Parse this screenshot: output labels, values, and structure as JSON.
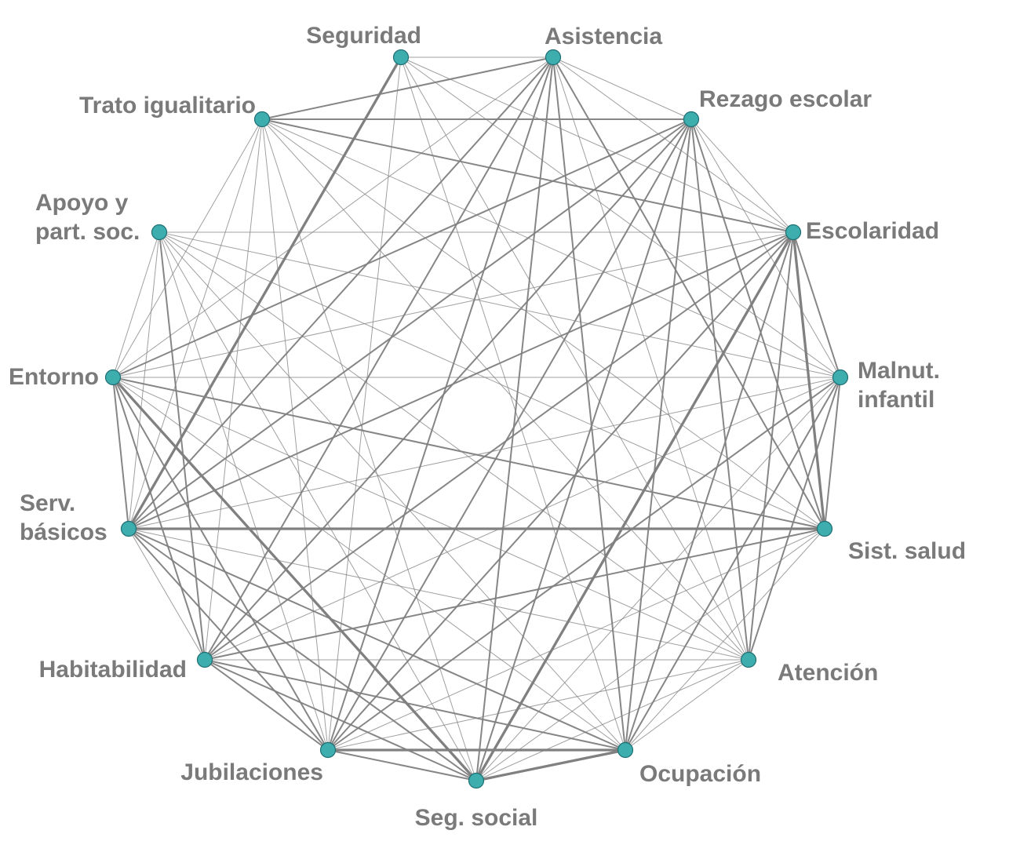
{
  "network": {
    "node_color": "#3dadae",
    "edge_color": "#808080",
    "label_color": "#7a7a7a",
    "nodes": [
      {
        "id": "seguridad",
        "lines": [
          "Seguridad"
        ]
      },
      {
        "id": "asistencia",
        "lines": [
          "Asistencia"
        ]
      },
      {
        "id": "rezago",
        "lines": [
          "Rezago escolar"
        ]
      },
      {
        "id": "escolaridad",
        "lines": [
          "Escolaridad"
        ]
      },
      {
        "id": "malnut",
        "lines": [
          "Malnut.",
          "infantil"
        ]
      },
      {
        "id": "salud",
        "lines": [
          "Sist. salud"
        ]
      },
      {
        "id": "atencion",
        "lines": [
          "Atención"
        ]
      },
      {
        "id": "ocupacion",
        "lines": [
          "Ocupación"
        ]
      },
      {
        "id": "segsocial",
        "lines": [
          "Seg. social"
        ]
      },
      {
        "id": "jubilaciones",
        "lines": [
          "Jubilaciones"
        ]
      },
      {
        "id": "habitabilidad",
        "lines": [
          "Habitabilidad"
        ]
      },
      {
        "id": "servicios",
        "lines": [
          "Serv.",
          "básicos"
        ]
      },
      {
        "id": "entorno",
        "lines": [
          "Entorno"
        ]
      },
      {
        "id": "apoyo",
        "lines": [
          "Apoyo y",
          "part. soc."
        ]
      },
      {
        "id": "trato",
        "lines": [
          "Trato igualitario"
        ]
      }
    ],
    "edges": [
      [
        "seguridad",
        "servicios",
        3
      ],
      [
        "seguridad",
        "asistencia",
        1
      ],
      [
        "seguridad",
        "escolaridad",
        1
      ],
      [
        "seguridad",
        "malnut",
        1
      ],
      [
        "seguridad",
        "atencion",
        1
      ],
      [
        "seguridad",
        "ocupacion",
        1
      ],
      [
        "seguridad",
        "jubilaciones",
        1
      ],
      [
        "asistencia",
        "trato",
        2
      ],
      [
        "asistencia",
        "salud",
        2
      ],
      [
        "asistencia",
        "segsocial",
        2
      ],
      [
        "asistencia",
        "jubilaciones",
        2
      ],
      [
        "asistencia",
        "habitabilidad",
        2
      ],
      [
        "asistencia",
        "servicios",
        2
      ],
      [
        "asistencia",
        "ocupacion",
        2
      ],
      [
        "asistencia",
        "atencion",
        1
      ],
      [
        "asistencia",
        "rezago",
        1
      ],
      [
        "asistencia",
        "escolaridad",
        1
      ],
      [
        "asistencia",
        "entorno",
        1
      ],
      [
        "rezago",
        "trato",
        2
      ],
      [
        "rezago",
        "entorno",
        2
      ],
      [
        "rezago",
        "servicios",
        2
      ],
      [
        "rezago",
        "escolaridad",
        1
      ],
      [
        "rezago",
        "malnut",
        1
      ],
      [
        "rezago",
        "salud",
        2
      ],
      [
        "rezago",
        "atencion",
        2
      ],
      [
        "rezago",
        "ocupacion",
        2
      ],
      [
        "rezago",
        "segsocial",
        2
      ],
      [
        "rezago",
        "jubilaciones",
        2
      ],
      [
        "rezago",
        "habitabilidad",
        2
      ],
      [
        "trato",
        "escolaridad",
        2
      ],
      [
        "trato",
        "salud",
        1
      ],
      [
        "trato",
        "malnut",
        1
      ],
      [
        "trato",
        "segsocial",
        1
      ],
      [
        "trato",
        "jubilaciones",
        1
      ],
      [
        "trato",
        "habitabilidad",
        1
      ],
      [
        "trato",
        "servicios",
        1
      ],
      [
        "trato",
        "atencion",
        1
      ],
      [
        "escolaridad",
        "salud",
        3
      ],
      [
        "escolaridad",
        "atencion",
        2
      ],
      [
        "escolaridad",
        "malnut",
        2
      ],
      [
        "escolaridad",
        "ocupacion",
        2
      ],
      [
        "escolaridad",
        "segsocial",
        3
      ],
      [
        "escolaridad",
        "jubilaciones",
        2
      ],
      [
        "escolaridad",
        "habitabilidad",
        2
      ],
      [
        "escolaridad",
        "servicios",
        2
      ],
      [
        "escolaridad",
        "entorno",
        1
      ],
      [
        "escolaridad",
        "apoyo",
        1
      ],
      [
        "malnut",
        "salud",
        2
      ],
      [
        "malnut",
        "atencion",
        2
      ],
      [
        "malnut",
        "ocupacion",
        2
      ],
      [
        "malnut",
        "segsocial",
        1
      ],
      [
        "malnut",
        "jubilaciones",
        2
      ],
      [
        "malnut",
        "habitabilidad",
        1
      ],
      [
        "malnut",
        "servicios",
        1
      ],
      [
        "malnut",
        "entorno",
        1
      ],
      [
        "malnut",
        "apoyo",
        1
      ],
      [
        "salud",
        "servicios",
        3
      ],
      [
        "salud",
        "habitabilidad",
        2
      ],
      [
        "salud",
        "entorno",
        2
      ],
      [
        "salud",
        "apoyo",
        1
      ],
      [
        "salud",
        "ocupacion",
        1
      ],
      [
        "salud",
        "jubilaciones",
        1
      ],
      [
        "salud",
        "segsocial",
        1
      ],
      [
        "atencion",
        "habitabilidad",
        1
      ],
      [
        "atencion",
        "servicios",
        1
      ],
      [
        "atencion",
        "entorno",
        1
      ],
      [
        "atencion",
        "apoyo",
        1
      ],
      [
        "atencion",
        "jubilaciones",
        1
      ],
      [
        "atencion",
        "segsocial",
        1
      ],
      [
        "atencion",
        "ocupacion",
        1
      ],
      [
        "ocupacion",
        "segsocial",
        3
      ],
      [
        "ocupacion",
        "jubilaciones",
        3
      ],
      [
        "ocupacion",
        "habitabilidad",
        2
      ],
      [
        "ocupacion",
        "servicios",
        2
      ],
      [
        "ocupacion",
        "entorno",
        1
      ],
      [
        "ocupacion",
        "apoyo",
        1
      ],
      [
        "segsocial",
        "jubilaciones",
        2
      ],
      [
        "segsocial",
        "habitabilidad",
        2
      ],
      [
        "segsocial",
        "servicios",
        2
      ],
      [
        "segsocial",
        "entorno",
        3
      ],
      [
        "segsocial",
        "apoyo",
        1
      ],
      [
        "jubilaciones",
        "habitabilidad",
        2
      ],
      [
        "jubilaciones",
        "servicios",
        2
      ],
      [
        "jubilaciones",
        "entorno",
        2
      ],
      [
        "jubilaciones",
        "apoyo",
        1
      ],
      [
        "habitabilidad",
        "servicios",
        1
      ],
      [
        "habitabilidad",
        "entorno",
        2
      ],
      [
        "habitabilidad",
        "apoyo",
        2
      ],
      [
        "servicios",
        "entorno",
        2
      ],
      [
        "servicios",
        "apoyo",
        1
      ],
      [
        "entorno",
        "apoyo",
        1
      ],
      [
        "entorno",
        "trato",
        1
      ]
    ]
  }
}
